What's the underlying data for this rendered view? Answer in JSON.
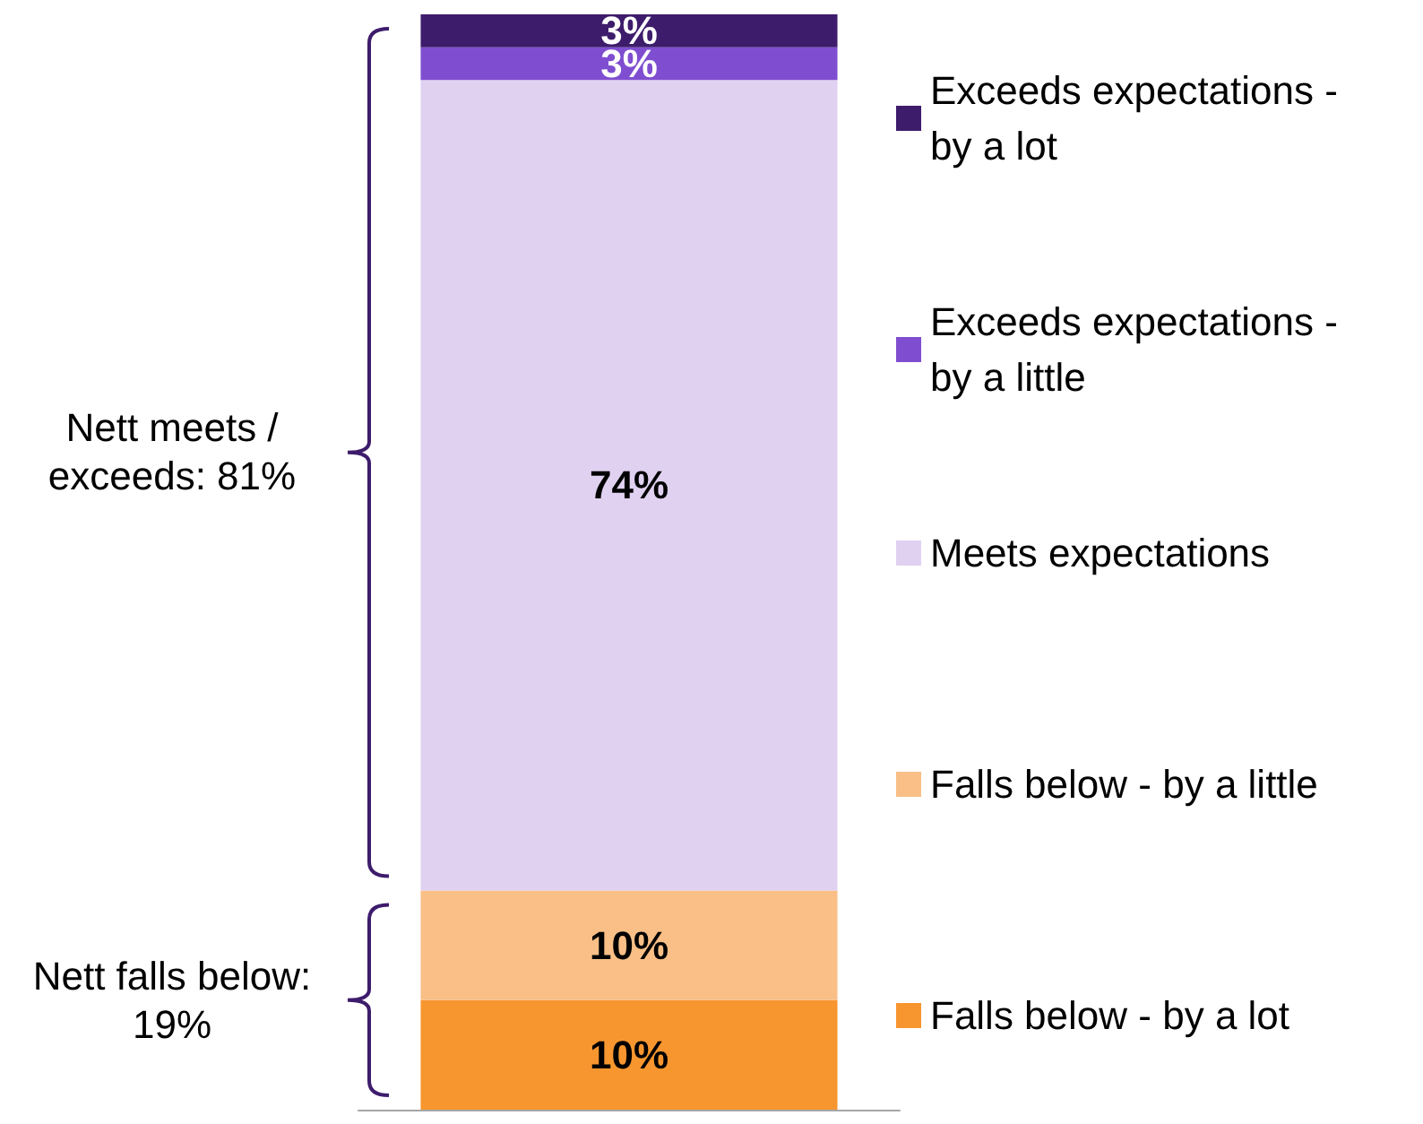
{
  "chart_data": {
    "type": "bar",
    "stacked": true,
    "categories": [
      null
    ],
    "series": [
      {
        "name": "Falls below - by a lot",
        "color": "#f7962f",
        "values": [
          10
        ],
        "value_labels": [
          "10%"
        ]
      },
      {
        "name": "Falls below - by a little",
        "color": "#f9bf86",
        "values": [
          10
        ],
        "value_labels": [
          "10%"
        ]
      },
      {
        "name": "Meets expectations",
        "color": "#e0d1f1",
        "values": [
          74
        ],
        "value_labels": [
          "74%"
        ]
      },
      {
        "name": "Exceeds expectations - by a little",
        "color": "#7f4ed0",
        "values": [
          3
        ],
        "value_labels": [
          "3%"
        ]
      },
      {
        "name": "Exceeds expectations - by a lot",
        "color": "#3e1c6c",
        "values": [
          3
        ],
        "value_labels": [
          "3%"
        ]
      }
    ],
    "annotations": [
      "Nett falls below: 19%",
      "Nett meets / exceeds: 81%"
    ],
    "legend": "right"
  }
}
